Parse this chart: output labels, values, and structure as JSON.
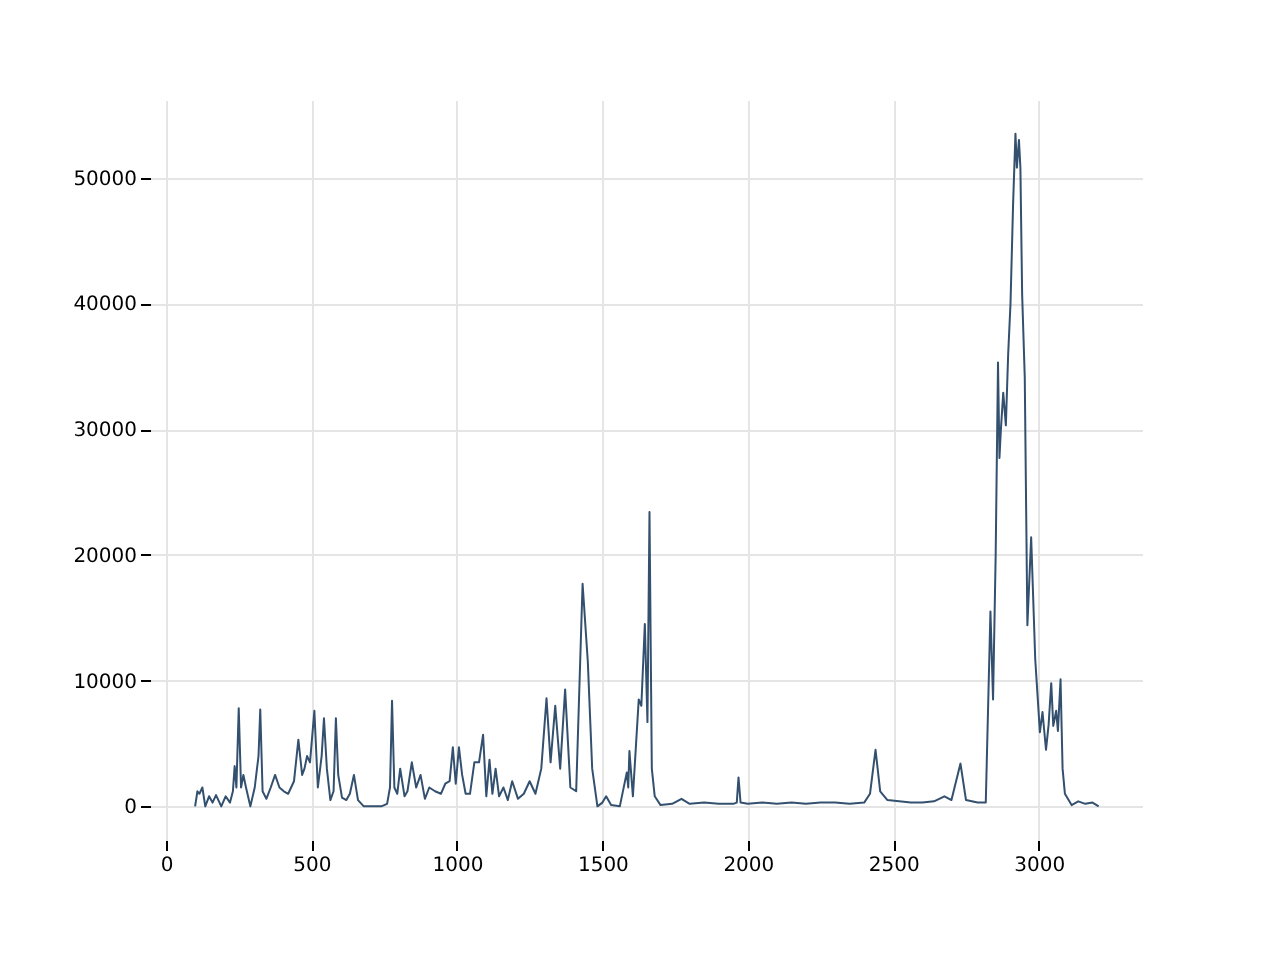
{
  "chart_data": {
    "type": "line",
    "xlim": [
      -55,
      3355
    ],
    "ylim": [
      -2675,
      56175
    ],
    "xticks": [
      0,
      500,
      1000,
      1500,
      2000,
      2500,
      3000
    ],
    "yticks": [
      0,
      10000,
      20000,
      30000,
      40000,
      50000
    ],
    "grid": true,
    "marker": "none",
    "line_style": "solid",
    "series": [
      {
        "color": "#34506f",
        "x": [
          100,
          108,
          115,
          125,
          135,
          148,
          160,
          172,
          190,
          205,
          220,
          230,
          236,
          242,
          250,
          258,
          266,
          275,
          290,
          305,
          318,
          324,
          332,
          345,
          360,
          375,
          390,
          405,
          420,
          440,
          455,
          468,
          476,
          485,
          495,
          510,
          522,
          535,
          543,
          553,
          565,
          576,
          584,
          592,
          605,
          620,
          632,
          646,
          660,
          680,
          700,
          720,
          740,
          760,
          770,
          777,
          785,
          795,
          805,
          820,
          830,
          845,
          860,
          875,
          890,
          905,
          925,
          945,
          960,
          975,
          986,
          996,
          1007,
          1018,
          1030,
          1045,
          1060,
          1076,
          1090,
          1101,
          1112,
          1122,
          1133,
          1145,
          1160,
          1175,
          1190,
          1210,
          1230,
          1250,
          1270,
          1290,
          1308,
          1322,
          1338,
          1355,
          1372,
          1390,
          1410,
          1432,
          1450,
          1465,
          1483,
          1500,
          1513,
          1530,
          1560,
          1584,
          1589,
          1593,
          1605,
          1625,
          1634,
          1646,
          1655,
          1662,
          1670,
          1680,
          1700,
          1740,
          1772,
          1800,
          1850,
          1900,
          1950,
          1962,
          1968,
          1975,
          2000,
          2050,
          2100,
          2150,
          2200,
          2250,
          2300,
          2350,
          2400,
          2420,
          2439,
          2455,
          2480,
          2520,
          2560,
          2600,
          2640,
          2676,
          2700,
          2731,
          2750,
          2790,
          2818,
          2834,
          2843,
          2852,
          2860,
          2865,
          2870,
          2878,
          2887,
          2895,
          2903,
          2912,
          2920,
          2925,
          2932,
          2937,
          2943,
          2952,
          2961,
          2974,
          2988,
          3004,
          3013,
          3025,
          3034,
          3043,
          3050,
          3060,
          3066,
          3075,
          3082,
          3090,
          3113,
          3136,
          3160,
          3185,
          3206
        ],
        "values": [
          0,
          1200,
          1000,
          1500,
          0,
          800,
          300,
          900,
          0,
          800,
          300,
          1200,
          3200,
          1500,
          7800,
          1500,
          2500,
          1500,
          0,
          1500,
          4000,
          7700,
          1200,
          600,
          1500,
          2500,
          1500,
          1200,
          1000,
          2000,
          5300,
          2500,
          3000,
          4000,
          3500,
          7600,
          1500,
          4000,
          7000,
          3000,
          500,
          1200,
          7000,
          2500,
          700,
          500,
          1000,
          2500,
          500,
          0,
          0,
          0,
          0,
          200,
          1500,
          8400,
          1500,
          1000,
          3000,
          800,
          1200,
          3500,
          1500,
          2500,
          600,
          1500,
          1200,
          1000,
          1800,
          2000,
          4700,
          1800,
          4700,
          2500,
          1000,
          1000,
          3500,
          3500,
          5700,
          800,
          3700,
          1000,
          3000,
          800,
          1500,
          500,
          2000,
          600,
          1000,
          2000,
          1000,
          3000,
          8600,
          3500,
          8000,
          3000,
          9300,
          1500,
          1200,
          17700,
          11500,
          3000,
          0,
          300,
          800,
          100,
          0,
          2700,
          1500,
          4400,
          800,
          8500,
          8000,
          14500,
          6700,
          23400,
          3000,
          800,
          100,
          200,
          600,
          200,
          300,
          200,
          200,
          300,
          2300,
          300,
          200,
          300,
          200,
          300,
          200,
          300,
          300,
          200,
          300,
          1000,
          4500,
          1200,
          500,
          400,
          300,
          300,
          400,
          800,
          500,
          3400,
          500,
          300,
          300,
          15500,
          8500,
          20000,
          35300,
          27700,
          30000,
          32900,
          30300,
          36000,
          40000,
          48000,
          53500,
          50800,
          53000,
          50800,
          40700,
          34100,
          14400,
          21400,
          11700,
          5900,
          7500,
          4500,
          6500,
          9800,
          6400,
          7600,
          6000,
          10100,
          3000,
          1000,
          100,
          400,
          200,
          300,
          0
        ]
      }
    ]
  }
}
